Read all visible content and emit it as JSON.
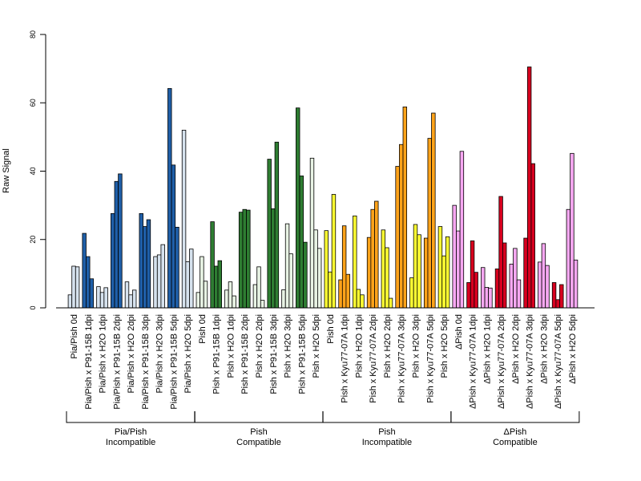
{
  "chart_data": {
    "type": "bar",
    "ylabel": "Raw Signal",
    "ylim": [
      0,
      80
    ],
    "yticks": [
      0,
      20,
      40,
      60,
      80
    ],
    "colors": {
      "pia_dark": "#1f5fa8",
      "pia_light": "#d6e2ee",
      "pish_dark": "#2e7d32",
      "pish_light": "#e8f3e4",
      "yellow": "#ffff33",
      "orange": "#ffa31a",
      "pink": "#f7a8f2",
      "red": "#d8001f"
    },
    "categories": [
      {
        "label": "Pia/Pish 0d",
        "color": "pia_light",
        "values": [
          3.8,
          12.2,
          12.0
        ]
      },
      {
        "label": "Pia/Pish x P91-15B 1dpi",
        "color": "pia_dark",
        "values": [
          21.8,
          15.0,
          8.5
        ]
      },
      {
        "label": "Pia/Pish x H2O 1dpi",
        "color": "pia_light",
        "values": [
          6.2,
          4.5,
          5.9
        ]
      },
      {
        "label": "Pia/Pish x P91-15B 2dpi",
        "color": "pia_dark",
        "values": [
          27.6,
          37.0,
          39.2
        ]
      },
      {
        "label": "Pia/Pish x H2O 2dpi",
        "color": "pia_light",
        "values": [
          7.6,
          3.8,
          5.2
        ]
      },
      {
        "label": "Pia/Pish x P91-15B 3dpi",
        "color": "pia_dark",
        "values": [
          27.6,
          23.8,
          25.8
        ]
      },
      {
        "label": "Pia/Pish x H2O 3dpi",
        "color": "pia_light",
        "values": [
          15.0,
          15.5,
          18.5
        ]
      },
      {
        "label": "Pia/Pish x P91-15B 5dpi",
        "color": "pia_dark",
        "values": [
          64.2,
          41.8,
          23.6
        ]
      },
      {
        "label": "Pia/Pish x H2O 5dpi",
        "color": "pia_light",
        "values": [
          52.0,
          13.5,
          17.2
        ]
      },
      {
        "label": "Pish 0d",
        "color": "pish_light",
        "values": [
          4.5,
          15.0,
          7.8
        ]
      },
      {
        "label": "Pish x P91-15B 1dpi",
        "color": "pish_dark",
        "values": [
          25.2,
          12.2,
          13.8
        ]
      },
      {
        "label": "Pish x H2O 1dpi",
        "color": "pish_light",
        "values": [
          5.2,
          7.6,
          3.5
        ]
      },
      {
        "label": "Pish x P91-15B 2dpi",
        "color": "pish_dark",
        "values": [
          28.0,
          28.8,
          28.6
        ]
      },
      {
        "label": "Pish x H2O 2dpi",
        "color": "pish_light",
        "values": [
          6.8,
          12.0,
          2.2
        ]
      },
      {
        "label": "Pish x P91-15B 3dpi",
        "color": "pish_dark",
        "values": [
          43.5,
          29.0,
          48.5
        ]
      },
      {
        "label": "Pish x H2O 3dpi",
        "color": "pish_light",
        "values": [
          5.3,
          24.6,
          15.8
        ]
      },
      {
        "label": "Pish x P91-15B 5dpi",
        "color": "pish_dark",
        "values": [
          58.5,
          38.6,
          19.2
        ]
      },
      {
        "label": "Pish x H2O 5dpi",
        "color": "pish_light",
        "values": [
          43.8,
          22.8,
          17.4
        ]
      },
      {
        "label": "Pish 0d",
        "color": "yellow",
        "values": [
          22.6,
          10.5,
          33.2
        ]
      },
      {
        "label": "Pish x Kyu77-07A 1dpi",
        "color": "orange",
        "values": [
          8.2,
          24.0,
          9.8
        ]
      },
      {
        "label": "Pish x H2O 1dpi",
        "color": "yellow",
        "values": [
          26.9,
          5.4,
          3.8
        ]
      },
      {
        "label": "Pish x Kyu77-07A 2dpi",
        "color": "orange",
        "values": [
          20.6,
          28.8,
          31.2
        ]
      },
      {
        "label": "Pish x H2O 2dpi",
        "color": "yellow",
        "values": [
          22.8,
          17.6,
          2.8
        ]
      },
      {
        "label": "Pish x Kyu77-07A 3dpi",
        "color": "orange",
        "values": [
          41.4,
          47.8,
          58.8
        ]
      },
      {
        "label": "Pish x H2O 3dpi",
        "color": "yellow",
        "values": [
          8.8,
          24.4,
          21.4
        ]
      },
      {
        "label": "Pish x Kyu77-07A 5dpi",
        "color": "orange",
        "values": [
          20.4,
          49.6,
          57.0
        ]
      },
      {
        "label": "Pish x H2O 5dpi",
        "color": "yellow",
        "values": [
          23.8,
          15.2,
          20.8
        ]
      },
      {
        "label": "ΔPish 0d",
        "color": "pink",
        "values": [
          30.0,
          22.5,
          45.8
        ]
      },
      {
        "label": "ΔPish x Kyu77-07A 1dpi",
        "color": "red",
        "values": [
          7.4,
          19.6,
          10.4
        ]
      },
      {
        "label": "ΔPish x H2O 1dpi",
        "color": "pink",
        "values": [
          11.8,
          6.0,
          5.8
        ]
      },
      {
        "label": "ΔPish x Kyu77-07A 2dpi",
        "color": "red",
        "values": [
          11.4,
          32.6,
          19.0
        ]
      },
      {
        "label": "ΔPish x H2O 2dpi",
        "color": "pink",
        "values": [
          12.8,
          17.4,
          8.2
        ]
      },
      {
        "label": "ΔPish x Kyu77-07A 3dpi",
        "color": "red",
        "values": [
          20.4,
          70.5,
          42.2
        ]
      },
      {
        "label": "ΔPish x H2O 3dpi",
        "color": "pink",
        "values": [
          13.4,
          18.8,
          12.4
        ]
      },
      {
        "label": "ΔPish x Kyu77-07A 5dpi",
        "color": "red",
        "values": [
          7.4,
          2.4,
          6.8
        ]
      },
      {
        "label": "ΔPish x H2O 5dpi",
        "color": "pink",
        "values": [
          28.8,
          45.2,
          14.0
        ]
      }
    ],
    "groups": [
      {
        "line1": "Pia/Pish",
        "line2": "Incompatible",
        "start": 0,
        "end": 8
      },
      {
        "line1": "Pish",
        "line2": "Compatible",
        "start": 9,
        "end": 17
      },
      {
        "line1": "Pish",
        "line2": "Incompatible",
        "start": 18,
        "end": 26
      },
      {
        "line1": "ΔPish",
        "line2": "Compatible",
        "start": 27,
        "end": 35
      }
    ]
  }
}
